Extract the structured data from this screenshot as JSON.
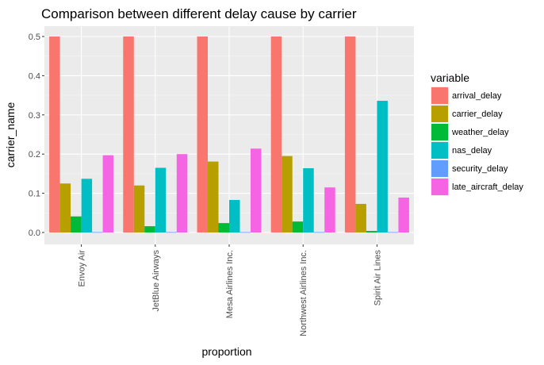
{
  "chart_data": {
    "type": "bar",
    "title": "Comparison between different delay cause by carrier",
    "xlabel": "proportion",
    "ylabel": "carrier_name",
    "categories": [
      "Envoy Air",
      "JetBlue Airways",
      "Mesa Airlines Inc.",
      "Northwest Airlines Inc.",
      "Spirit Air Lines"
    ],
    "ylim": [
      0,
      0.5
    ],
    "y_ticks": [
      "0.0",
      "0.1",
      "0.2",
      "0.3",
      "0.4",
      "0.5"
    ],
    "grid": true,
    "legend_title": "variable",
    "legend_position": "right",
    "series": [
      {
        "name": "arrival_delay",
        "color": "#F8766D",
        "values": [
          0.5,
          0.5,
          0.5,
          0.5,
          0.5
        ]
      },
      {
        "name": "carrier_delay",
        "color": "#B79F00",
        "values": [
          0.125,
          0.12,
          0.181,
          0.195,
          0.073
        ]
      },
      {
        "name": "weather_delay",
        "color": "#00BA38",
        "values": [
          0.041,
          0.016,
          0.024,
          0.028,
          0.004
        ]
      },
      {
        "name": "nas_delay",
        "color": "#00BFC4",
        "values": [
          0.137,
          0.165,
          0.083,
          0.164,
          0.336
        ]
      },
      {
        "name": "security_delay",
        "color": "#619CFF",
        "values": [
          0.001,
          0.001,
          0.001,
          0.001,
          0.001
        ]
      },
      {
        "name": "late_aircraft_delay",
        "color": "#F564E3",
        "values": [
          0.197,
          0.2,
          0.214,
          0.115,
          0.089
        ]
      }
    ]
  }
}
